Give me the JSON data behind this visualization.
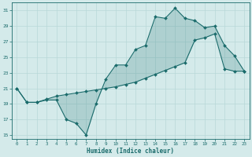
{
  "xlabel": "Humidex (Indice chaleur)",
  "bg_color": "#d4eaea",
  "grid_color": "#b8d8d8",
  "line_color": "#1a6b6b",
  "xlim": [
    -0.5,
    23.5
  ],
  "ylim": [
    14.5,
    32
  ],
  "yticks": [
    15,
    17,
    19,
    21,
    23,
    25,
    27,
    29,
    31
  ],
  "xticks": [
    0,
    1,
    2,
    3,
    4,
    5,
    6,
    7,
    8,
    9,
    10,
    11,
    12,
    13,
    14,
    15,
    16,
    17,
    18,
    19,
    20,
    21,
    22,
    23
  ],
  "series1_x": [
    0,
    1,
    2,
    3,
    4,
    5,
    6,
    7,
    8,
    9,
    10,
    11,
    12,
    13,
    14,
    15,
    16,
    17,
    18,
    19,
    20,
    21,
    22,
    23
  ],
  "series1_y": [
    21,
    19.2,
    19.2,
    19.5,
    19.5,
    17.0,
    16.5,
    15.0,
    19.0,
    22.2,
    24.0,
    24.0,
    26.0,
    26.5,
    30.2,
    30.0,
    31.3,
    30.0,
    29.7,
    28.8,
    29.0,
    26.5,
    25.2,
    23.2
  ],
  "series2_x": [
    0,
    1,
    2,
    3,
    4,
    5,
    6,
    7,
    8,
    9,
    10,
    11,
    12,
    13,
    14,
    15,
    16,
    17,
    18,
    19,
    20,
    21,
    22,
    23
  ],
  "series2_y": [
    21,
    19.2,
    19.2,
    19.6,
    20.0,
    20.2,
    20.4,
    20.6,
    20.8,
    21.0,
    21.2,
    21.5,
    21.8,
    22.3,
    22.8,
    23.3,
    23.8,
    24.3,
    27.2,
    27.5,
    28.0,
    23.5,
    23.2,
    23.2
  ]
}
